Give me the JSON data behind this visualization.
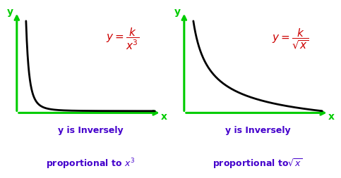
{
  "bg_color": "#ffffff",
  "arrow_color": "#00cc00",
  "curve_color": "#000000",
  "formula_color": "#cc0000",
  "label_color": "#4400cc",
  "axis_lw": 2.2,
  "curve_lw": 2.0,
  "formula_fontsize": 11,
  "label_fontsize": 9,
  "axis_label_fontsize": 10,
  "panel1_formula": "$y = \\dfrac{k}{x^3}$",
  "panel2_formula": "$y = \\dfrac{k}{\\sqrt{x}}$",
  "panel1_label_line1": "y is Inversely",
  "panel1_label_line2": "proportional to $x^3$",
  "panel2_label_line1": "y is Inversely",
  "panel2_label_line2": "proportional to$\\sqrt{x}$"
}
